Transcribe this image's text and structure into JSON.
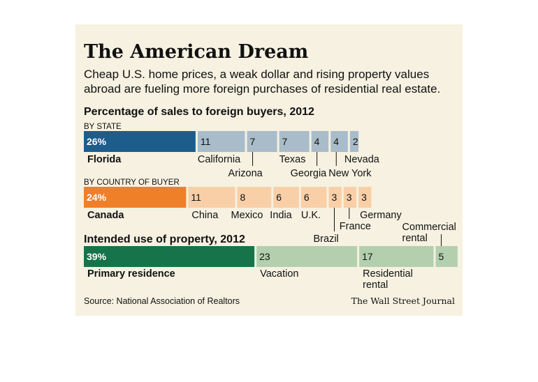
{
  "header": {
    "title": "The American Dream",
    "subtitle_line1": "Cheap U.S. home prices, a weak dollar and rising property values",
    "subtitle_line2": "abroad are fueling more foreign purchases of residential real estate."
  },
  "footer": {
    "source": "Source: National Association of Realtors",
    "credit": "The Wall Street Journal"
  },
  "colors": {
    "state": [
      "#1c5d8c",
      "#a9bcc9"
    ],
    "country": [
      "#f07f2a",
      "#f9cfa8"
    ],
    "use": [
      "#17734a",
      "#b3cfae"
    ],
    "background": "#f6f1e1"
  },
  "chart_data": [
    {
      "type": "bar",
      "orientation": "stacked-horizontal",
      "title": "Percentage of sales to foreign buyers, 2012",
      "subtitle": "BY STATE",
      "categories": [
        "Florida",
        "California",
        "Arizona",
        "Texas",
        "Georgia",
        "New York",
        "Nevada"
      ],
      "values": [
        26,
        11,
        7,
        7,
        4,
        4,
        2
      ],
      "value_labels": [
        "26%",
        "11",
        "7",
        "7",
        "4",
        "4",
        "2"
      ]
    },
    {
      "type": "bar",
      "orientation": "stacked-horizontal",
      "title": "",
      "subtitle": "BY COUNTRY OF BUYER",
      "categories": [
        "Canada",
        "China",
        "Mexico",
        "India",
        "U.K.",
        "Brazil",
        "France",
        "Germany"
      ],
      "values": [
        24,
        11,
        8,
        6,
        6,
        3,
        3,
        3
      ],
      "value_labels": [
        "24%",
        "11",
        "8",
        "6",
        "6",
        "3",
        "3",
        "3"
      ]
    },
    {
      "type": "bar",
      "orientation": "stacked-horizontal",
      "title": "Intended use of property, 2012",
      "subtitle": "",
      "categories": [
        "Primary residence",
        "Vacation",
        "Residential rental",
        "Commercial rental"
      ],
      "category_lines": [
        [
          "Primary residence"
        ],
        [
          "Vacation"
        ],
        [
          "Residential",
          "rental"
        ],
        [
          "Commercial",
          "rental"
        ]
      ],
      "values": [
        39,
        23,
        17,
        5
      ],
      "value_labels": [
        "39%",
        "23",
        "17",
        "5"
      ]
    }
  ]
}
